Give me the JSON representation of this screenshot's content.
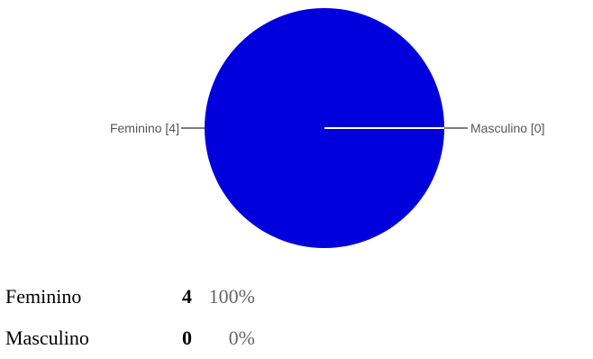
{
  "chart_data": {
    "type": "pie",
    "slices": [
      {
        "label": "Feminino",
        "value": 4,
        "label_text": "Feminino [4]"
      },
      {
        "label": "Masculino",
        "value": 0,
        "label_text": "Masculino [0]"
      }
    ]
  },
  "colors": {
    "slice_feminino": "#0000dd",
    "slice_masculino": "#dc3912",
    "leader_line": "#555555"
  },
  "summary": {
    "rows": [
      {
        "label": "Feminino",
        "count": "4",
        "percent": "100%"
      },
      {
        "label": "Masculino",
        "count": "0",
        "percent": "0%"
      }
    ]
  }
}
